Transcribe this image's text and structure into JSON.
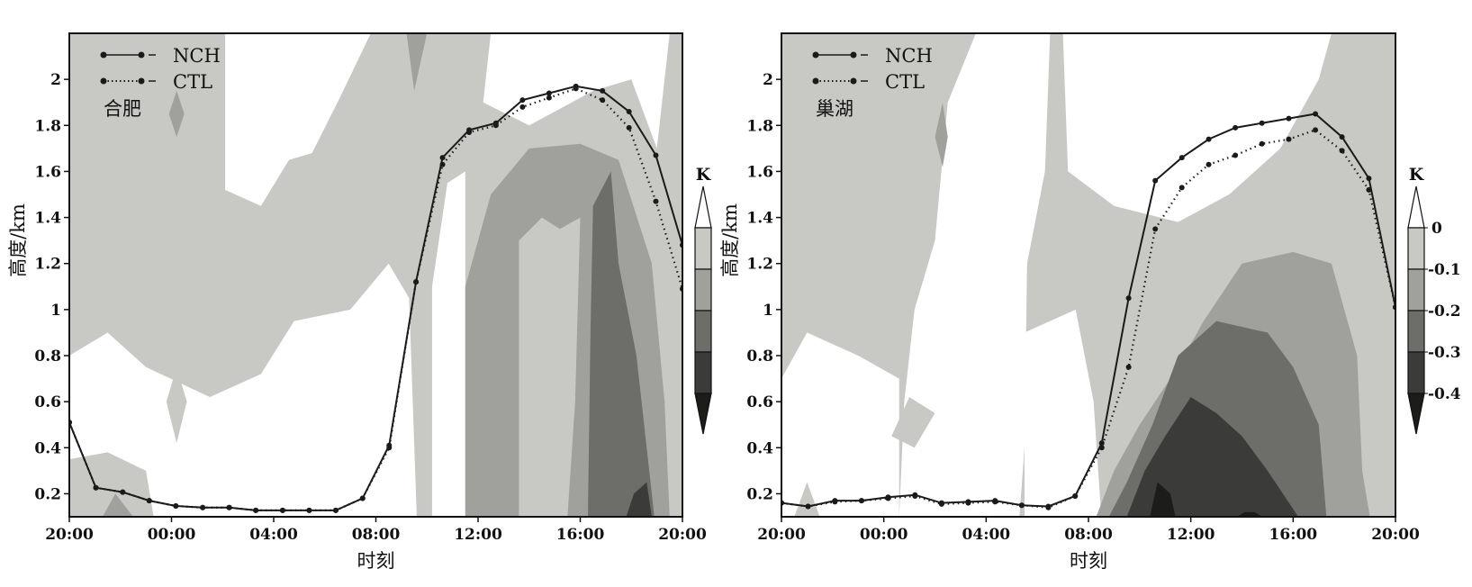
{
  "chart_data": [
    {
      "type": "line",
      "station": "合肥",
      "xlabel": "时刻",
      "ylabel": "高度/km",
      "x_ticks": [
        "20:00",
        "00:00",
        "04:00",
        "08:00",
        "12:00",
        "16:00",
        "20:00"
      ],
      "y_ticks": [
        "0.2",
        "0.4",
        "0.6",
        "0.8",
        "1",
        "1.2",
        "1.4",
        "1.6",
        "1.8",
        "2"
      ],
      "xlim_hours": [
        0,
        24
      ],
      "ylim": [
        0.1,
        2.2
      ],
      "x_hours": [
        0,
        1.04,
        2.09,
        3.13,
        4.17,
        5.22,
        6.26,
        7.3,
        8.35,
        9.39,
        10.43,
        11.48,
        12.52,
        13.57,
        14.61,
        15.65,
        16.7,
        17.74,
        18.78,
        19.83,
        20.87,
        21.91,
        22.96,
        24
      ],
      "series": [
        {
          "name": "NCH",
          "style": "solid",
          "values": [
            0.51,
            0.226,
            0.207,
            0.17,
            0.147,
            0.14,
            0.14,
            0.128,
            0.128,
            0.128,
            0.128,
            0.18,
            0.41,
            1.12,
            1.66,
            1.78,
            1.81,
            1.91,
            1.94,
            1.97,
            1.95,
            1.86,
            1.67,
            1.28
          ]
        },
        {
          "name": "CTL",
          "style": "dotted",
          "values": [
            0.51,
            0.226,
            0.207,
            0.17,
            0.147,
            0.14,
            0.14,
            0.128,
            0.128,
            0.128,
            0.128,
            0.18,
            0.4,
            1.12,
            1.63,
            1.77,
            1.8,
            1.88,
            1.92,
            1.96,
            1.91,
            1.79,
            1.47,
            1.09
          ]
        }
      ],
      "colorbar": {
        "unit": "K",
        "labels": []
      }
    },
    {
      "type": "line",
      "station": "巢湖",
      "xlabel": "时刻",
      "ylabel": "高度/km",
      "x_ticks": [
        "20:00",
        "00:00",
        "04:00",
        "08:00",
        "12:00",
        "16:00",
        "20:00"
      ],
      "y_ticks": [
        "0.2",
        "0.4",
        "0.6",
        "0.8",
        "1",
        "1.2",
        "1.4",
        "1.6",
        "1.8",
        "2"
      ],
      "xlim_hours": [
        0,
        24
      ],
      "ylim": [
        0.1,
        2.2
      ],
      "x_hours": [
        0,
        1.04,
        2.09,
        3.13,
        4.17,
        5.22,
        6.26,
        7.3,
        8.35,
        9.39,
        10.43,
        11.48,
        12.52,
        13.57,
        14.61,
        15.65,
        16.7,
        17.74,
        18.78,
        19.83,
        20.87,
        21.91,
        22.96,
        24
      ],
      "series": [
        {
          "name": "NCH",
          "style": "solid",
          "values": [
            0.16,
            0.145,
            0.17,
            0.17,
            0.185,
            0.195,
            0.16,
            0.165,
            0.17,
            0.15,
            0.145,
            0.19,
            0.42,
            1.05,
            1.56,
            1.66,
            1.74,
            1.79,
            1.81,
            1.83,
            1.85,
            1.75,
            1.57,
            1.01
          ]
        },
        {
          "name": "CTL",
          "style": "dotted",
          "values": [
            0.16,
            0.145,
            0.165,
            0.17,
            0.18,
            0.19,
            0.155,
            0.16,
            0.165,
            0.15,
            0.14,
            0.19,
            0.4,
            0.75,
            1.35,
            1.53,
            1.63,
            1.67,
            1.72,
            1.74,
            1.78,
            1.69,
            1.52,
            1.01
          ]
        }
      ],
      "colorbar": {
        "unit": "K",
        "labels": [
          "0",
          "-0.1",
          "-0.2",
          "-0.3",
          "-0.4"
        ]
      }
    }
  ],
  "contour_levels": [
    0,
    -0.1,
    -0.2,
    -0.3,
    -0.4
  ],
  "contour_colors": [
    "#ffffff",
    "#c8c9c5",
    "#a0a19c",
    "#6d6e6a",
    "#3b3b39",
    "#1c1c1a"
  ]
}
